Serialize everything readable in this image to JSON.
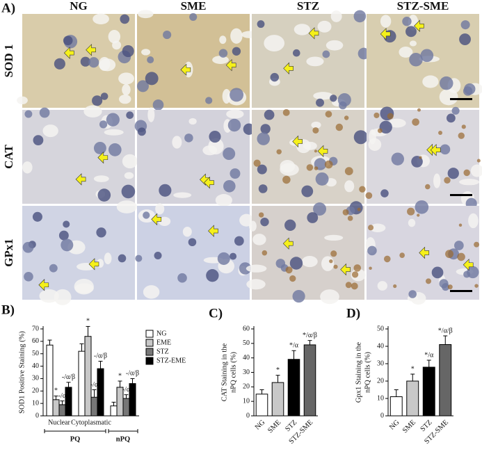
{
  "figure": {
    "panel_label": "A)",
    "columns": [
      "NG",
      "SME",
      "STZ",
      "STZ-SME"
    ],
    "rows": [
      "SOD 1",
      "CAT",
      "GPx1"
    ]
  },
  "chart_data": [
    {
      "type": "grouped_bar",
      "panel_label": "B)",
      "ylabel": "SOD1 Positive Staining (%)",
      "categories": [
        "Nuclear",
        "Cytoplasmatic",
        null
      ],
      "groups": [
        {
          "label": "PQ",
          "size": 2
        },
        {
          "label": "nPQ",
          "size": 1
        }
      ],
      "series": [
        {
          "name": "NG",
          "color": "#ffffff",
          "values": [
            57,
            52,
            8
          ],
          "errors": [
            4,
            6,
            3
          ],
          "annotations": [
            null,
            null,
            null
          ]
        },
        {
          "name": "EME",
          "color": "#c8c8c8",
          "values": [
            13,
            64,
            23
          ],
          "errors": [
            3,
            8,
            5
          ],
          "annotations": [
            "*",
            "*",
            "*"
          ]
        },
        {
          "name": "STZ",
          "color": "#777777",
          "values": [
            9,
            15,
            14
          ],
          "errors": [
            3,
            6,
            3
          ],
          "annotations": [
            "-/α",
            "-/α",
            "-/α"
          ]
        },
        {
          "name": "STZ-EME",
          "color": "#000000",
          "values": [
            23,
            38,
            26
          ],
          "errors": [
            4,
            6,
            4
          ],
          "annotations": [
            "-/α/β",
            "-/α/β",
            "-/α/β"
          ]
        }
      ],
      "ylim": [
        0,
        70
      ],
      "yticks": [
        0,
        10,
        20,
        30,
        40,
        50,
        60,
        70
      ]
    },
    {
      "type": "bar",
      "panel_label": "C)",
      "ylabel": [
        "CAT Staining in the",
        "nPQ cells (%)"
      ],
      "categories": [
        "NG",
        "SME",
        "STZ",
        "STZ-SME"
      ],
      "values": [
        15,
        23,
        39,
        49
      ],
      "errors": [
        3,
        5,
        6,
        3
      ],
      "colors": [
        "#ffffff",
        "#c8c8c8",
        "#000000",
        "#666666"
      ],
      "annotations": [
        null,
        "*",
        "*/α",
        "*/α/β"
      ],
      "ylim": [
        0,
        60
      ],
      "yticks": [
        0,
        10,
        20,
        30,
        40,
        50,
        60
      ]
    },
    {
      "type": "bar",
      "panel_label": "D)",
      "ylabel": [
        "Gpx1 Staining in the",
        "nPQ cells (%)"
      ],
      "categories": [
        "NG",
        "SME",
        "STZ",
        "STZ-SME"
      ],
      "values": [
        11,
        20,
        28,
        41
      ],
      "errors": [
        4,
        4,
        4,
        5
      ],
      "colors": [
        "#ffffff",
        "#c8c8c8",
        "#000000",
        "#666666"
      ],
      "annotations": [
        null,
        "*",
        "*/α",
        "*/α/β"
      ],
      "ylim": [
        0,
        50
      ],
      "yticks": [
        0,
        10,
        20,
        30,
        40,
        50
      ]
    }
  ]
}
